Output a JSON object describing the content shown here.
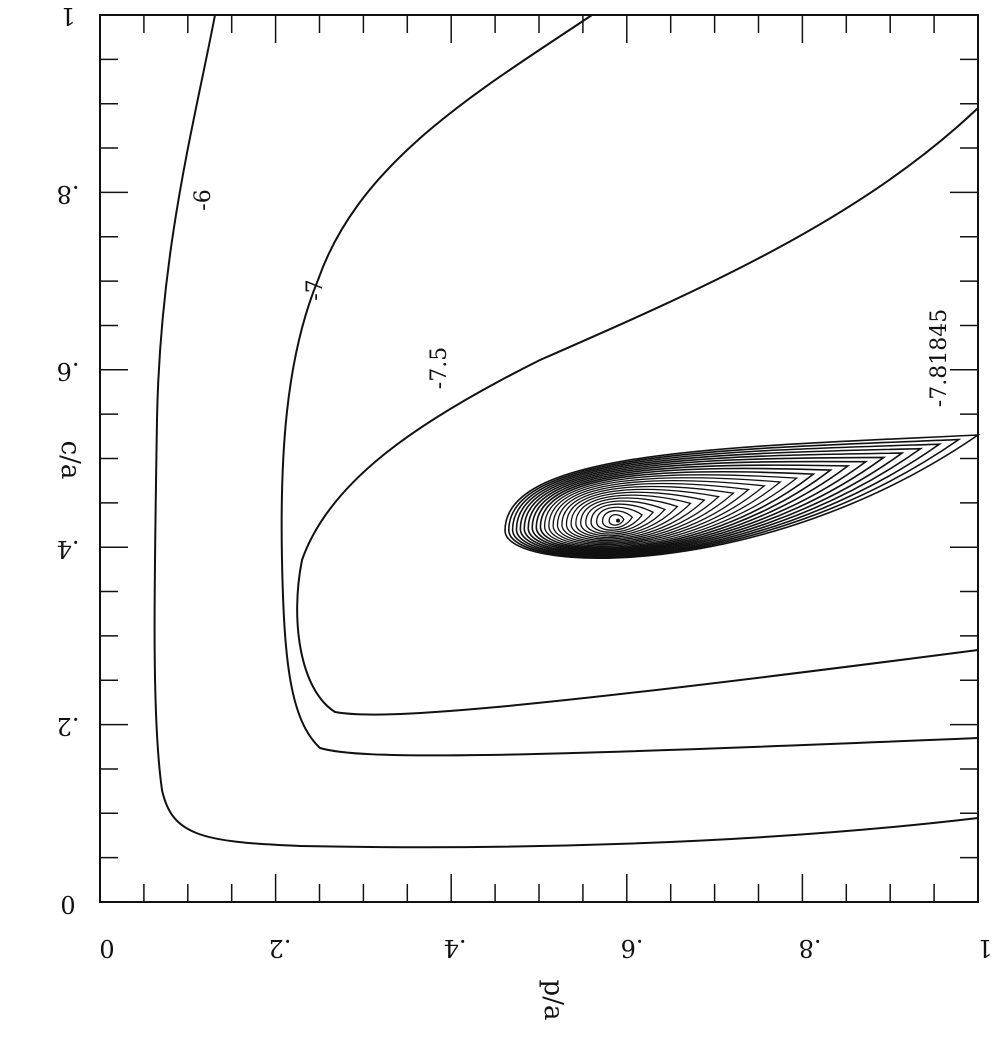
{
  "chart_data": {
    "type": "contour",
    "xlabel": "p/a",
    "ylabel": "c/a",
    "xlim": [
      0,
      1
    ],
    "ylim": [
      0,
      1
    ],
    "x_ticks": [
      "0",
      ".2",
      ".4",
      ".6",
      ".8",
      "1"
    ],
    "y_ticks": [
      "0",
      ".2",
      ".4",
      ".6",
      ".8",
      "1"
    ],
    "x_tick_values": [
      0,
      0.2,
      0.4,
      0.6,
      0.8,
      1
    ],
    "y_tick_values": [
      0,
      0.2,
      0.4,
      0.6,
      0.8,
      1
    ],
    "grid": false,
    "orientation": "image rotated/transposed (labels drawn sideways and upside down)",
    "contour_labels": [
      {
        "level": -6,
        "text": "-6"
      },
      {
        "level": -7,
        "text": "-7"
      },
      {
        "level": -7.5,
        "text": "-7.5"
      },
      {
        "level": -7.81845,
        "text": "-7.81845"
      }
    ],
    "minimum": {
      "p_over_a": 0.59,
      "c_over_a": 0.43
    },
    "color": "#111111"
  }
}
